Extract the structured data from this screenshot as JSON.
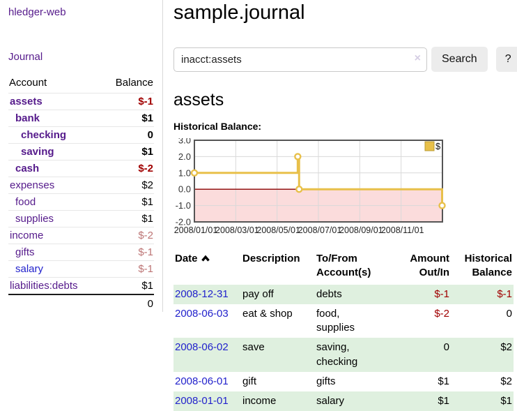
{
  "app": {
    "title": "hledger-web"
  },
  "colors": {
    "link_purple": "#551A8B",
    "link_blue": "#2222cc",
    "negative_red": "#a00000",
    "muted_negative": "#bd7575",
    "row_green": "#dff0df",
    "chart_line_gold": "#e8c04a",
    "chart_negative_fill": "#fbdcdc",
    "chart_zero_line": "#8b0000"
  },
  "sidebar": {
    "journal_link": "Journal",
    "accounts_table": {
      "headers": {
        "account": "Account",
        "balance": "Balance"
      },
      "rows": [
        {
          "label": "assets",
          "balance": "$-1",
          "level": 1,
          "bold": true,
          "label_style": "purple",
          "balance_style": "negative"
        },
        {
          "label": "bank",
          "balance": "$1",
          "level": 2,
          "bold": true,
          "label_style": "purple",
          "balance_style": "default"
        },
        {
          "label": "checking",
          "balance": "0",
          "level": 3,
          "bold": true,
          "label_style": "purple",
          "balance_style": "default"
        },
        {
          "label": "saving",
          "balance": "$1",
          "level": 3,
          "bold": true,
          "label_style": "purple",
          "balance_style": "default"
        },
        {
          "label": "cash",
          "balance": "$-2",
          "level": 2,
          "bold": true,
          "label_style": "purple",
          "balance_style": "negative"
        },
        {
          "label": "expenses",
          "balance": "$2",
          "level": 1,
          "bold": false,
          "label_style": "purple",
          "balance_style": "default"
        },
        {
          "label": "food",
          "balance": "$1",
          "level": 2,
          "bold": false,
          "label_style": "purple",
          "balance_style": "default"
        },
        {
          "label": "supplies",
          "balance": "$1",
          "level": 2,
          "bold": false,
          "label_style": "purple",
          "balance_style": "default"
        },
        {
          "label": "income",
          "balance": "$-2",
          "level": 1,
          "bold": false,
          "label_style": "purple",
          "balance_style": "muted"
        },
        {
          "label": "gifts",
          "balance": "$-1",
          "level": 2,
          "bold": false,
          "label_style": "purple",
          "balance_style": "muted"
        },
        {
          "label": "salary",
          "balance": "$-1",
          "level": 2,
          "bold": false,
          "label_style": "blue",
          "balance_style": "muted"
        },
        {
          "label": "liabilities:debts",
          "balance": "$1",
          "level": 1,
          "bold": false,
          "label_style": "purple",
          "balance_style": "default"
        }
      ],
      "total": "0"
    }
  },
  "main": {
    "title": "sample.journal",
    "search": {
      "value": "inacct:assets",
      "clear_icon": "×",
      "button_label": "Search",
      "help_label": "?"
    },
    "section_title": "assets",
    "chart_label": "Historical Balance:"
  },
  "chart_data": {
    "type": "line",
    "title": "Historical Balance:",
    "step": true,
    "series": [
      {
        "name": "$",
        "color": "#e8c04a",
        "points": [
          {
            "date": "2008-01-01",
            "value": 1
          },
          {
            "date": "2008-06-01",
            "value": 2
          },
          {
            "date": "2008-06-03",
            "value": 0
          },
          {
            "date": "2008-12-31",
            "value": -1
          }
        ]
      }
    ],
    "ylim": [
      -2,
      3
    ],
    "yticks": [
      3,
      2,
      1,
      0,
      -1,
      -2
    ],
    "ytick_labels": [
      "3.0",
      "2.0",
      "1.0",
      "0.0",
      "-1.0",
      "-2.0"
    ],
    "xtick_labels": [
      "2008/01/01",
      "2008/03/01",
      "2008/05/01",
      "2008/07/01",
      "2008/09/01",
      "2008/11/01"
    ],
    "x_range_months": [
      "2008-01-01",
      "2009-01-01"
    ],
    "grid": true,
    "legend": {
      "label": "$",
      "position": "top-right"
    },
    "zero_line_color": "#8b0000",
    "negative_fill": "#fbdcdc"
  },
  "register": {
    "sort_column": "Date",
    "sort_direction": "ascending",
    "columns": [
      {
        "label_lines": [
          "Date"
        ],
        "align": "left",
        "sorted": "ascending"
      },
      {
        "label_lines": [
          "Description"
        ],
        "align": "left"
      },
      {
        "label_lines": [
          "To/From",
          "Account(s)"
        ],
        "align": "left"
      },
      {
        "label_lines": [
          "Amount",
          "Out/In"
        ],
        "align": "right"
      },
      {
        "label_lines": [
          "Historical",
          "Balance"
        ],
        "align": "right"
      }
    ],
    "rows": [
      {
        "date": "2008-12-31",
        "description": "pay off",
        "accounts": "debts",
        "amount": "$-1",
        "amount_negative": true,
        "balance": "$-1",
        "balance_negative": true,
        "shaded": true
      },
      {
        "date": "2008-06-03",
        "description": "eat & shop",
        "accounts": "food, supplies",
        "amount": "$-2",
        "amount_negative": true,
        "balance": "0",
        "balance_negative": false,
        "shaded": false
      },
      {
        "date": "2008-06-02",
        "description": "save",
        "accounts": "saving, checking",
        "amount": "0",
        "amount_negative": false,
        "balance": "$2",
        "balance_negative": false,
        "shaded": true
      },
      {
        "date": "2008-06-01",
        "description": "gift",
        "accounts": "gifts",
        "amount": "$1",
        "amount_negative": false,
        "balance": "$2",
        "balance_negative": false,
        "shaded": false
      },
      {
        "date": "2008-01-01",
        "description": "income",
        "accounts": "salary",
        "amount": "$1",
        "amount_negative": false,
        "balance": "$1",
        "balance_negative": false,
        "shaded": true
      }
    ]
  }
}
